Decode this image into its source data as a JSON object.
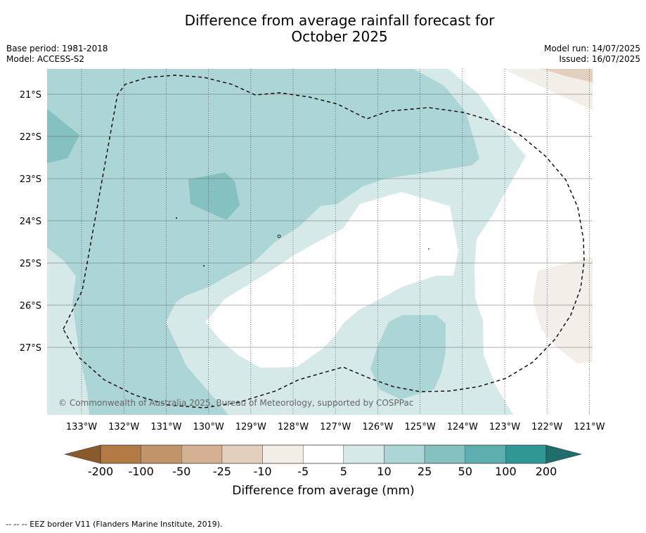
{
  "title": {
    "line1": "Difference from average rainfall forecast for",
    "line2": "October 2025"
  },
  "meta": {
    "base_period": "Base period: 1981-2018",
    "model": "Model: ACCESS-S2",
    "model_run": "Model run: 14/07/2025",
    "issued": "Issued: 16/07/2025"
  },
  "map": {
    "lat_labels": [
      "21°S",
      "22°S",
      "23°S",
      "24°S",
      "25°S",
      "26°S",
      "27°S"
    ],
    "lon_labels": [
      "133°W",
      "132°W",
      "131°W",
      "130°W",
      "129°W",
      "128°W",
      "127°W",
      "126°W",
      "125°W",
      "124°W",
      "123°W",
      "122°W",
      "121°W"
    ],
    "copyright": "© Commonwealth of Australia 2025, Bureau of Meteorology, supported by COSPPac",
    "regions": [
      {
        "category": "5 to 10 mm",
        "color": "#d4e9e8"
      },
      {
        "category": "10 to 25 mm",
        "color": "#acd6d5"
      },
      {
        "category": "25 to 50 mm",
        "color": "#84c1c0"
      },
      {
        "category": "-10 to -5 mm",
        "color": "#f2eee8"
      },
      {
        "category": "-25 to -10 mm",
        "color": "#e2cfbd"
      },
      {
        "category": "-5 to 5 mm",
        "color": "#ffffff"
      }
    ]
  },
  "colorbar": {
    "title": "Difference from average (mm)",
    "tick_labels": [
      "-200",
      "-100",
      "-50",
      "-25",
      "-10",
      "-5",
      "5",
      "10",
      "25",
      "50",
      "100",
      "200"
    ],
    "colors": [
      "#8b5a2b",
      "#b07a42",
      "#c2946a",
      "#d5b093",
      "#e2cfbd",
      "#f2eee8",
      "#ffffff",
      "#d4e9e8",
      "#acd6d5",
      "#84c1c0",
      "#5daeae",
      "#2f9794",
      "#1d6f6c"
    ]
  },
  "footer": {
    "legend": "-- -- -- EEZ border V11 (Flanders Marine Institute, 2019)."
  }
}
